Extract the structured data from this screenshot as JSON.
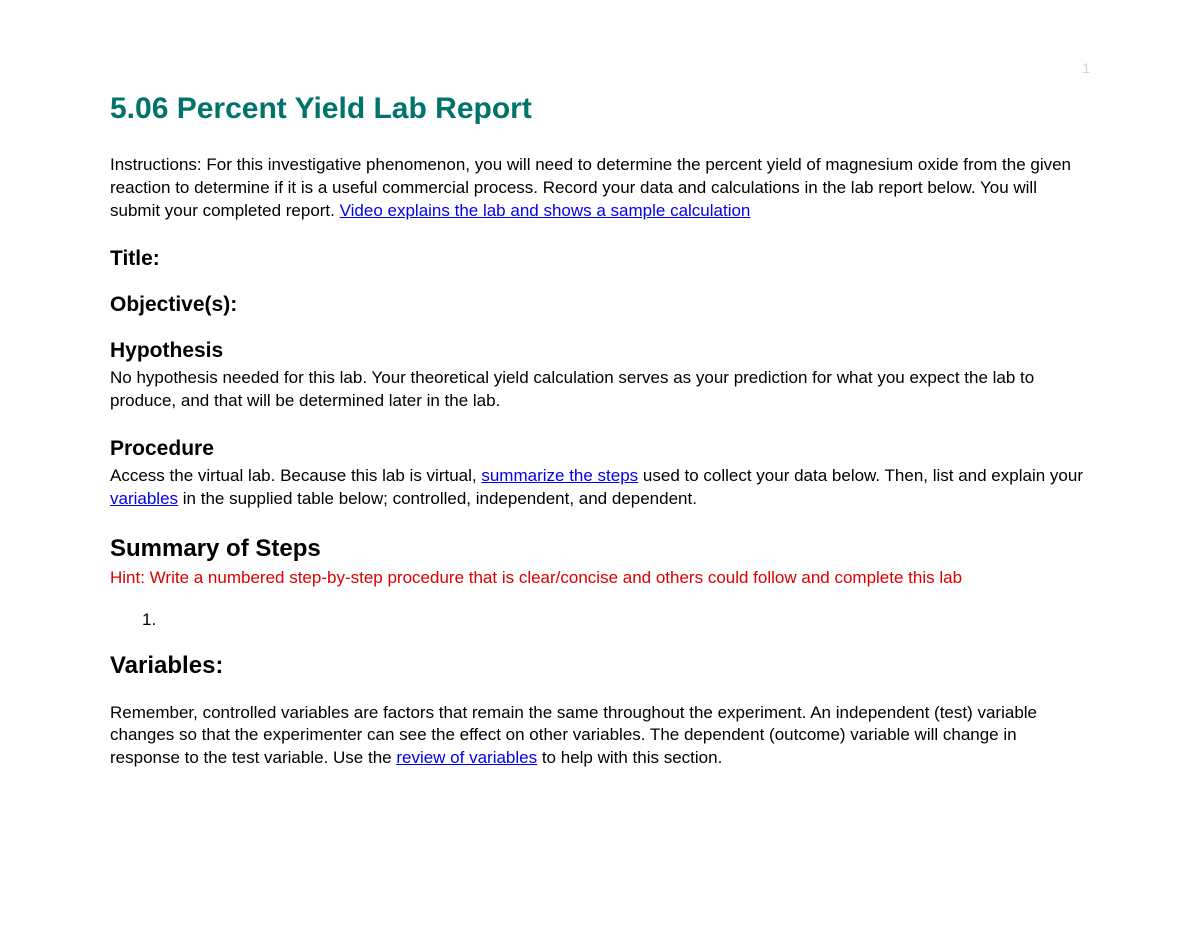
{
  "colors": {
    "title": "#00736b",
    "body": "#000000",
    "link": "#0000ee",
    "hint": "#d90000",
    "pageNumber": "#d0d0d0",
    "background": "#ffffff"
  },
  "typography": {
    "title_fontsize": 30,
    "h2_fontsize": 21,
    "h2_big_fontsize": 24,
    "body_fontsize": 17,
    "font_family": "Arial"
  },
  "pageNumber": "1",
  "docTitle": "5.06 Percent Yield Lab Report",
  "instructions": {
    "pre": "Instructions: For this investigative phenomenon, you will need to determine the percent yield of magnesium oxide from the given reaction to determine if it is a useful commercial process. Record your data and calculations in the lab report below. You will submit your completed report.   ",
    "link": "Video explains the lab and shows a sample calculation"
  },
  "sections": {
    "title_label": "Title:",
    "objectives_label": "Objective(s):",
    "hypothesis_label": "Hypothesis",
    "hypothesis_body": "No hypothesis needed for this lab. Your theoretical yield calculation serves as your prediction for what you expect the lab to produce, and that will be determined later in the lab.",
    "procedure_label": "Procedure",
    "procedure": {
      "pre": "Access the virtual lab. Because this lab is virtual, ",
      "link1": "summarize the steps",
      "mid": " used to collect your data below. Then, list and explain your ",
      "link2": "variables",
      "post": " in the supplied table below; controlled, independent, and dependent."
    },
    "summary_label": "Summary of Steps",
    "summary_hint": "Hint: Write a numbered step-by-step procedure that is clear/concise and others could follow and complete this lab",
    "step_items": [
      "1."
    ],
    "variables_label": "Variables:",
    "variables": {
      "pre": "Remember, controlled variables are factors that remain the same throughout the experiment. An independent (test) variable changes so that the experimenter can see the effect on other variables. The dependent (outcome) variable will change in response to the test variable. Use the ",
      "link": "review of variables",
      "post": " to help with this section."
    }
  }
}
